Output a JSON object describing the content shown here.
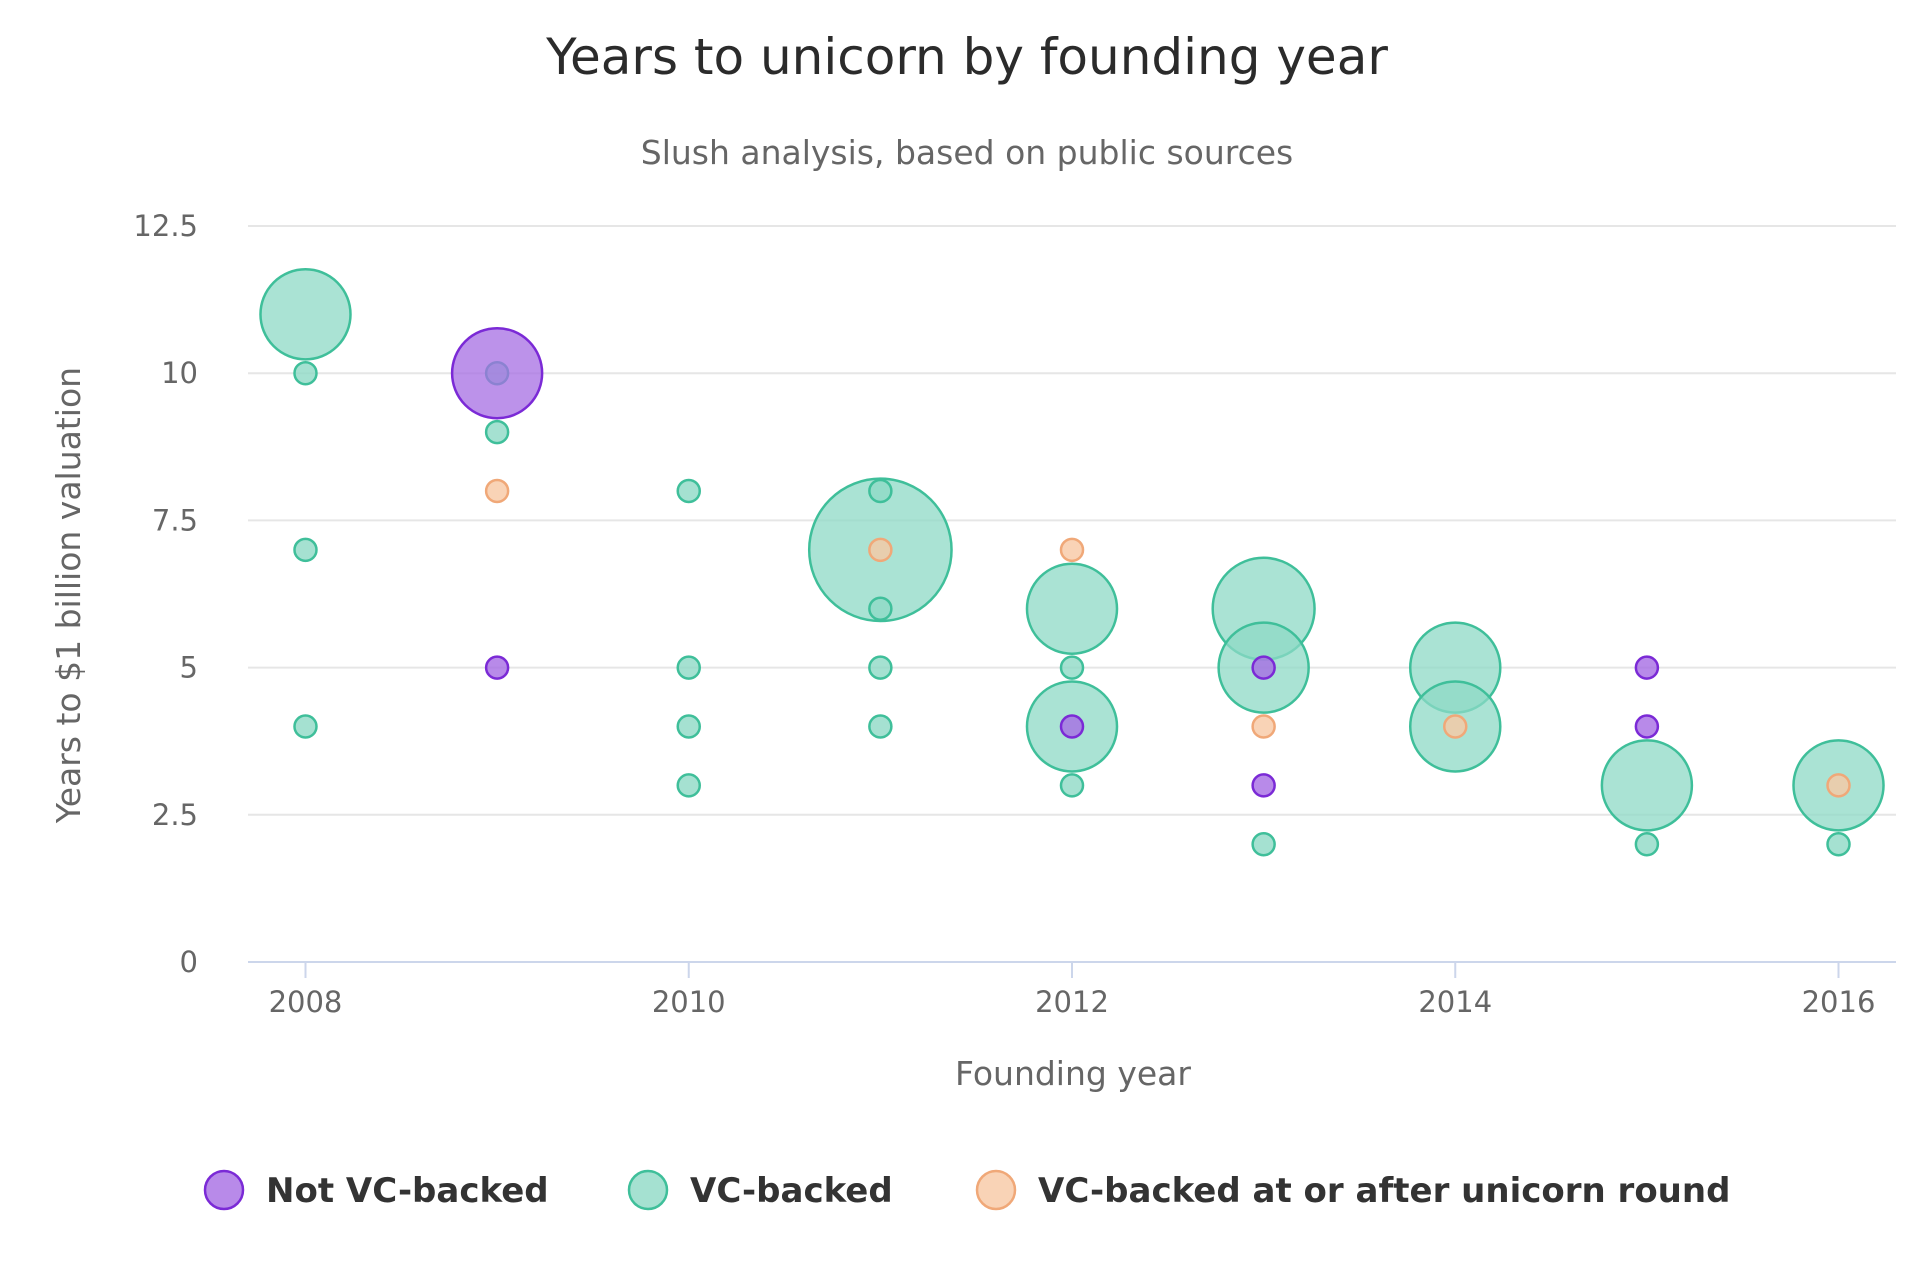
{
  "chart_data": {
    "type": "scatter",
    "title": "Years to unicorn by founding year",
    "subtitle": "Slush analysis, based on public sources",
    "xlabel": "Founding year",
    "ylabel": "Years to $1 billion valuation",
    "xlim": [
      2007.7,
      2016.3
    ],
    "ylim": [
      0,
      12.5
    ],
    "x_ticks": [
      "2008",
      "2010",
      "2012",
      "2014",
      "2016"
    ],
    "y_ticks": [
      "0",
      "2.5",
      "5",
      "7.5",
      "10",
      "12.5"
    ],
    "grid": true,
    "legend_position": "bottom",
    "colors": {
      "Not VC-backed": {
        "fill": "#a66de3",
        "stroke": "#7b2ad6"
      },
      "VC-backed": {
        "fill": "#8ed9c6",
        "stroke": "#3fbf9a"
      },
      "VC-backed at or after unicorn round": {
        "fill": "#f7c8a4",
        "stroke": "#f0a878"
      }
    },
    "size_scale_note": "bubble size = relative company size (unitless)",
    "series": [
      {
        "name": "Not VC-backed",
        "points": [
          {
            "x": 2009,
            "y": 10,
            "size": 5.0
          },
          {
            "x": 2009,
            "y": 5,
            "size": 1
          },
          {
            "x": 2012,
            "y": 4,
            "size": 1
          },
          {
            "x": 2013,
            "y": 5,
            "size": 1
          },
          {
            "x": 2013,
            "y": 3,
            "size": 1
          },
          {
            "x": 2015,
            "y": 5,
            "size": 1
          },
          {
            "x": 2015,
            "y": 4,
            "size": 1
          }
        ]
      },
      {
        "name": "VC-backed",
        "points": [
          {
            "x": 2008,
            "y": 11,
            "size": 5.0
          },
          {
            "x": 2008,
            "y": 10,
            "size": 1
          },
          {
            "x": 2008,
            "y": 7,
            "size": 1
          },
          {
            "x": 2008,
            "y": 4,
            "size": 1
          },
          {
            "x": 2009,
            "y": 10,
            "size": 1
          },
          {
            "x": 2009,
            "y": 9,
            "size": 1
          },
          {
            "x": 2010,
            "y": 8,
            "size": 1
          },
          {
            "x": 2010,
            "y": 5,
            "size": 1
          },
          {
            "x": 2010,
            "y": 4,
            "size": 1
          },
          {
            "x": 2010,
            "y": 3,
            "size": 1
          },
          {
            "x": 2011,
            "y": 7,
            "size": 12.5
          },
          {
            "x": 2011,
            "y": 8,
            "size": 1
          },
          {
            "x": 2011,
            "y": 6,
            "size": 1
          },
          {
            "x": 2011,
            "y": 5,
            "size": 1
          },
          {
            "x": 2011,
            "y": 4,
            "size": 1
          },
          {
            "x": 2012,
            "y": 6,
            "size": 5.0
          },
          {
            "x": 2012,
            "y": 5,
            "size": 1
          },
          {
            "x": 2012,
            "y": 4,
            "size": 5.0
          },
          {
            "x": 2012,
            "y": 3,
            "size": 1
          },
          {
            "x": 2013,
            "y": 6,
            "size": 6.4
          },
          {
            "x": 2013,
            "y": 5,
            "size": 5.0
          },
          {
            "x": 2013,
            "y": 2,
            "size": 1
          },
          {
            "x": 2014,
            "y": 5,
            "size": 5.0
          },
          {
            "x": 2014,
            "y": 4,
            "size": 5.0
          },
          {
            "x": 2015,
            "y": 3,
            "size": 5.0
          },
          {
            "x": 2015,
            "y": 2,
            "size": 1
          },
          {
            "x": 2016,
            "y": 3,
            "size": 5.0
          },
          {
            "x": 2016,
            "y": 2,
            "size": 1
          }
        ]
      },
      {
        "name": "VC-backed at or after unicorn round",
        "points": [
          {
            "x": 2009,
            "y": 8,
            "size": 1
          },
          {
            "x": 2011,
            "y": 7,
            "size": 1
          },
          {
            "x": 2012,
            "y": 7,
            "size": 1
          },
          {
            "x": 2013,
            "y": 4,
            "size": 1
          },
          {
            "x": 2014,
            "y": 4,
            "size": 1
          },
          {
            "x": 2016,
            "y": 3,
            "size": 1
          }
        ]
      }
    ]
  }
}
